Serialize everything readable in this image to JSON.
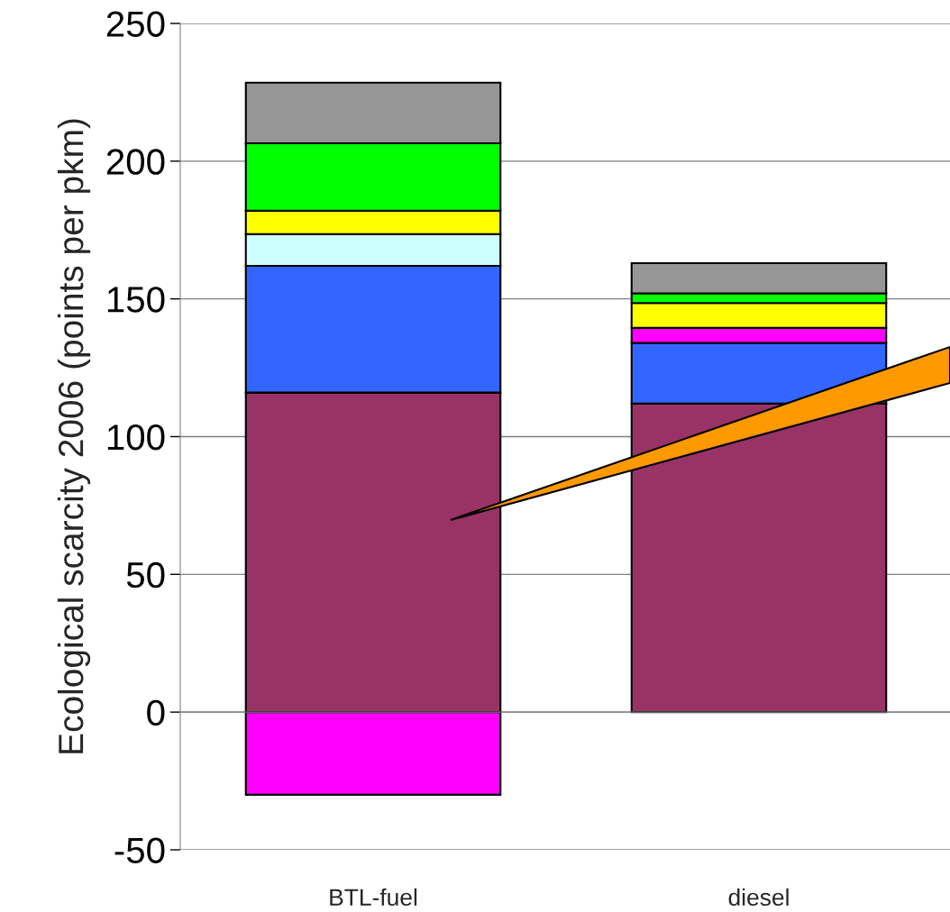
{
  "chart_data": {
    "type": "bar",
    "stacked": true,
    "ylabel": "Ecological scarcity 2006 (points per pkm)",
    "categories": [
      "BTL-fuel",
      "diesel"
    ],
    "series": [
      {
        "color": "#993366",
        "values": [
          116,
          112
        ]
      },
      {
        "color": "#3366ff",
        "values": [
          46,
          22
        ]
      },
      {
        "color": "#ff00ff",
        "values": [
          -30,
          5.5
        ]
      },
      {
        "color": "#ccffff",
        "values": [
          11.5,
          0
        ]
      },
      {
        "color": "#ffff00",
        "values": [
          8.5,
          9
        ]
      },
      {
        "color": "#00ff00",
        "values": [
          24.5,
          3.5
        ]
      },
      {
        "color": "#969696",
        "values": [
          22,
          11
        ]
      }
    ],
    "ylim": [
      -50,
      250
    ],
    "yticks": [
      -50,
      0,
      50,
      100,
      150,
      200,
      250
    ],
    "grid": "y",
    "legend": false
  }
}
